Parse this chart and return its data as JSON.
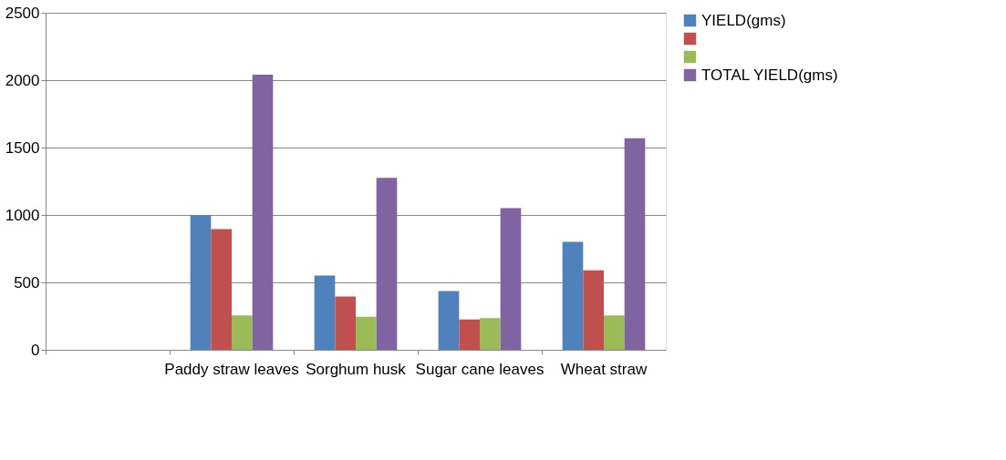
{
  "chart_data": {
    "type": "bar",
    "categories": [
      null,
      "Paddy straw leaves",
      "Sorghum husk",
      "Sugar cane leaves",
      "Wheat  straw"
    ],
    "series": [
      {
        "name": "YIELD(gms)",
        "color": "#4f81bd",
        "values": [
          null,
          1000,
          550,
          435,
          800
        ]
      },
      {
        "color": "#c0504d",
        "values": [
          null,
          895,
          395,
          225,
          590
        ]
      },
      {
        "color": "#9bbb59",
        "values": [
          null,
          255,
          245,
          235,
          255
        ]
      },
      {
        "name": "TOTAL YIELD(gms)",
        "color": "#8064a2",
        "values": [
          null,
          2040,
          1275,
          1050,
          1570
        ]
      }
    ],
    "ylim": [
      0,
      2500
    ],
    "yticks": [
      0,
      500,
      1000,
      1500,
      2000,
      2500
    ],
    "grid": "y",
    "legend": "right"
  }
}
